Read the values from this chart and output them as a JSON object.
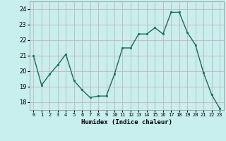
{
  "x": [
    0,
    1,
    2,
    3,
    4,
    5,
    6,
    7,
    8,
    9,
    10,
    11,
    12,
    13,
    14,
    15,
    16,
    17,
    18,
    19,
    20,
    21,
    22,
    23
  ],
  "y": [
    21.0,
    19.1,
    19.8,
    20.4,
    21.1,
    19.4,
    18.8,
    18.3,
    18.4,
    18.4,
    19.8,
    21.5,
    21.5,
    22.4,
    22.4,
    22.8,
    22.4,
    23.8,
    23.8,
    22.5,
    21.7,
    19.9,
    18.5,
    17.6
  ],
  "xlabel": "Humidex (Indice chaleur)",
  "ylim": [
    17.5,
    24.5
  ],
  "xlim": [
    -0.5,
    23.5
  ],
  "yticks": [
    18,
    19,
    20,
    21,
    22,
    23,
    24
  ],
  "xtick_labels": [
    "0",
    "1",
    "2",
    "3",
    "4",
    "5",
    "6",
    "7",
    "8",
    "9",
    "10",
    "11",
    "12",
    "13",
    "14",
    "15",
    "16",
    "17",
    "18",
    "19",
    "20",
    "21",
    "22",
    "23"
  ],
  "bg_color": "#c8eeee",
  "grid_color": "#c8a8a8",
  "line_color": "#1a6b5a",
  "marker_color": "#1a6b5a",
  "xlabel_fontsize": 6.5,
  "xtick_fontsize": 5.0,
  "ytick_fontsize": 6.0
}
